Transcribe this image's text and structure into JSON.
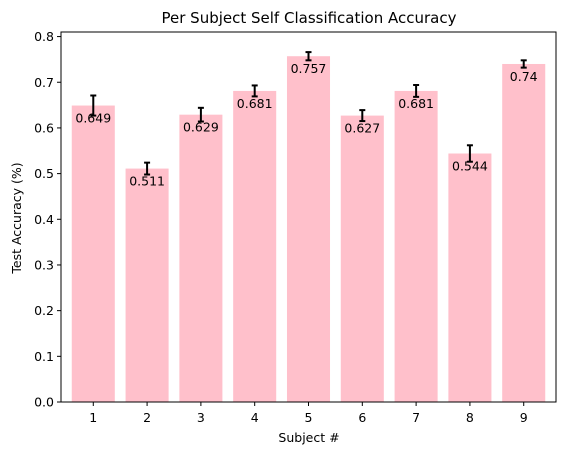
{
  "chart_data": {
    "type": "bar",
    "title": "Per Subject Self Classification Accuracy",
    "xlabel": "Subject #",
    "ylabel": "Test Accuracy (%)",
    "categories": [
      "1",
      "2",
      "3",
      "4",
      "5",
      "6",
      "7",
      "8",
      "9"
    ],
    "values": [
      0.649,
      0.511,
      0.629,
      0.681,
      0.757,
      0.627,
      0.681,
      0.544,
      0.74
    ],
    "errors": [
      0.022,
      0.013,
      0.015,
      0.012,
      0.009,
      0.012,
      0.013,
      0.018,
      0.008
    ],
    "data_labels": [
      "0.649",
      "0.511",
      "0.629",
      "0.681",
      "0.757",
      "0.627",
      "0.681",
      "0.544",
      "0.74"
    ],
    "ylim": [
      0,
      0.81
    ],
    "yticks": [
      0.0,
      0.1,
      0.2,
      0.3,
      0.4,
      0.5,
      0.6,
      0.7,
      0.8
    ],
    "ytick_labels": [
      "0.0",
      "0.1",
      "0.2",
      "0.3",
      "0.4",
      "0.5",
      "0.6",
      "0.7",
      "0.8"
    ],
    "grid": false,
    "colors": {
      "bar": "#ffc0cb",
      "error_bar": "#000000",
      "axis": "#000000"
    }
  }
}
